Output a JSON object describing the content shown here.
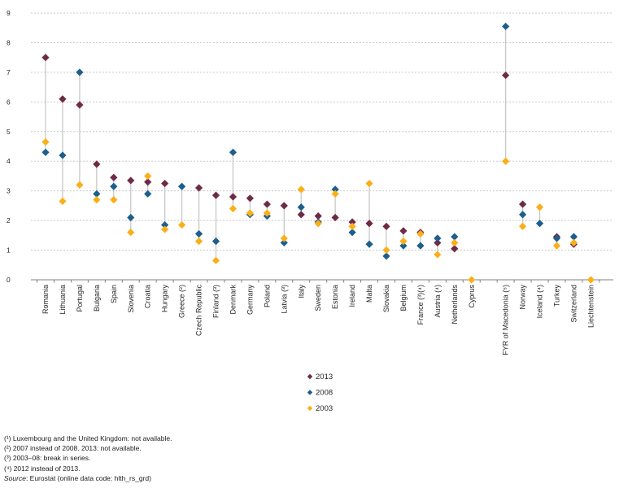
{
  "chart_data": {
    "type": "scatter",
    "title": "",
    "xlabel": "",
    "ylabel": "",
    "ylim": [
      0,
      9
    ],
    "yticks": [
      0,
      1,
      2,
      3,
      4,
      5,
      6,
      7,
      8,
      9
    ],
    "grid": true,
    "legend_position": "bottom-center",
    "series": [
      {
        "name": "2013",
        "color": "#6e2a47"
      },
      {
        "name": "2008",
        "color": "#1d5e8c"
      },
      {
        "name": "2003",
        "color": "#fbaf17"
      }
    ],
    "points": [
      {
        "country": "Romania",
        "y2013": 7.5,
        "y2008": 4.3,
        "y2003": 4.65
      },
      {
        "country": "Lithuania",
        "y2013": 6.1,
        "y2008": 4.2,
        "y2003": 2.65
      },
      {
        "country": "Portugal",
        "y2013": 5.9,
        "y2008": 7.0,
        "y2003": 3.2
      },
      {
        "country": "Bulgaria",
        "y2013": 3.9,
        "y2008": 2.9,
        "y2003": 2.7
      },
      {
        "country": "Spain",
        "y2013": 3.45,
        "y2008": 3.15,
        "y2003": 2.7
      },
      {
        "country": "Slovenia",
        "y2013": 3.35,
        "y2008": 2.1,
        "y2003": 1.6
      },
      {
        "country": "Croatia",
        "y2013": 3.3,
        "y2008": 2.9,
        "y2003": 3.5
      },
      {
        "country": "Hungary",
        "y2013": 3.25,
        "y2008": 1.85,
        "y2003": 1.7
      },
      {
        "country": "Greece (²)",
        "y2013": null,
        "y2008": 3.15,
        "y2003": 1.85
      },
      {
        "country": "Czech Republic",
        "y2013": 3.1,
        "y2008": 1.55,
        "y2003": 1.3
      },
      {
        "country": "Finland (³)",
        "y2013": 2.85,
        "y2008": 1.3,
        "y2003": 0.65
      },
      {
        "country": "Denmark",
        "y2013": 2.8,
        "y2008": 4.3,
        "y2003": 2.4
      },
      {
        "country": "Germany",
        "y2013": 2.75,
        "y2008": 2.2,
        "y2003": 2.25
      },
      {
        "country": "Poland",
        "y2013": 2.55,
        "y2008": 2.15,
        "y2003": 2.25
      },
      {
        "country": "Latvia (³)",
        "y2013": 2.5,
        "y2008": 1.25,
        "y2003": 1.4
      },
      {
        "country": "Italy",
        "y2013": 2.2,
        "y2008": 2.45,
        "y2003": 3.05
      },
      {
        "country": "Sweden",
        "y2013": 2.15,
        "y2008": 1.95,
        "y2003": 1.9
      },
      {
        "country": "Estonia",
        "y2013": 2.1,
        "y2008": 3.05,
        "y2003": 2.9
      },
      {
        "country": "Ireland",
        "y2013": 1.95,
        "y2008": 1.6,
        "y2003": 1.8
      },
      {
        "country": "Malta",
        "y2013": 1.9,
        "y2008": 1.2,
        "y2003": 3.25
      },
      {
        "country": "Slovakia",
        "y2013": 1.8,
        "y2008": 0.8,
        "y2003": 1.0
      },
      {
        "country": "Belgium",
        "y2013": 1.65,
        "y2008": 1.15,
        "y2003": 1.3
      },
      {
        "country": "France (³)(⁴)",
        "y2013": 1.6,
        "y2008": 1.15,
        "y2003": 1.55
      },
      {
        "country": "Austria (⁴)",
        "y2013": 1.25,
        "y2008": 1.4,
        "y2003": 0.85
      },
      {
        "country": "Netherlands",
        "y2013": 1.05,
        "y2008": 1.45,
        "y2003": 1.25
      },
      {
        "country": "Cyprus",
        "y2013": null,
        "y2008": null,
        "y2003": 0,
        "gap_after": true
      },
      {
        "country": "FYR of Macedonia (⁵)",
        "y2013": 6.9,
        "y2008": 8.55,
        "y2003": 4.0
      },
      {
        "country": "Norway",
        "y2013": 2.55,
        "y2008": 2.2,
        "y2003": 1.8
      },
      {
        "country": "Iceland (⁴)",
        "y2013": null,
        "y2008": 1.9,
        "y2003": 2.45
      },
      {
        "country": "Turkey",
        "y2013": 1.45,
        "y2008": 1.4,
        "y2003": 1.15
      },
      {
        "country": "Switzerland",
        "y2013": 1.2,
        "y2008": 1.45,
        "y2003": 1.25
      },
      {
        "country": "Liechtenstein",
        "y2013": null,
        "y2008": null,
        "y2003": 0
      }
    ],
    "connector_color": "#c8c8c8",
    "gridline_color": "#c9c9c9",
    "axis_color": "#808080"
  },
  "footnotes": {
    "lines": [
      "(¹) Luxembourg and the United Kingdom: not available.",
      "(²) 2007 instead of 2008. 2013: not available.",
      "(³) 2003–08: break in series.",
      "(⁴) 2012 instead of 2013."
    ],
    "source_prefix": "Source",
    "source_rest": ": Eurostat (online data code: hlth_rs_grd)"
  }
}
